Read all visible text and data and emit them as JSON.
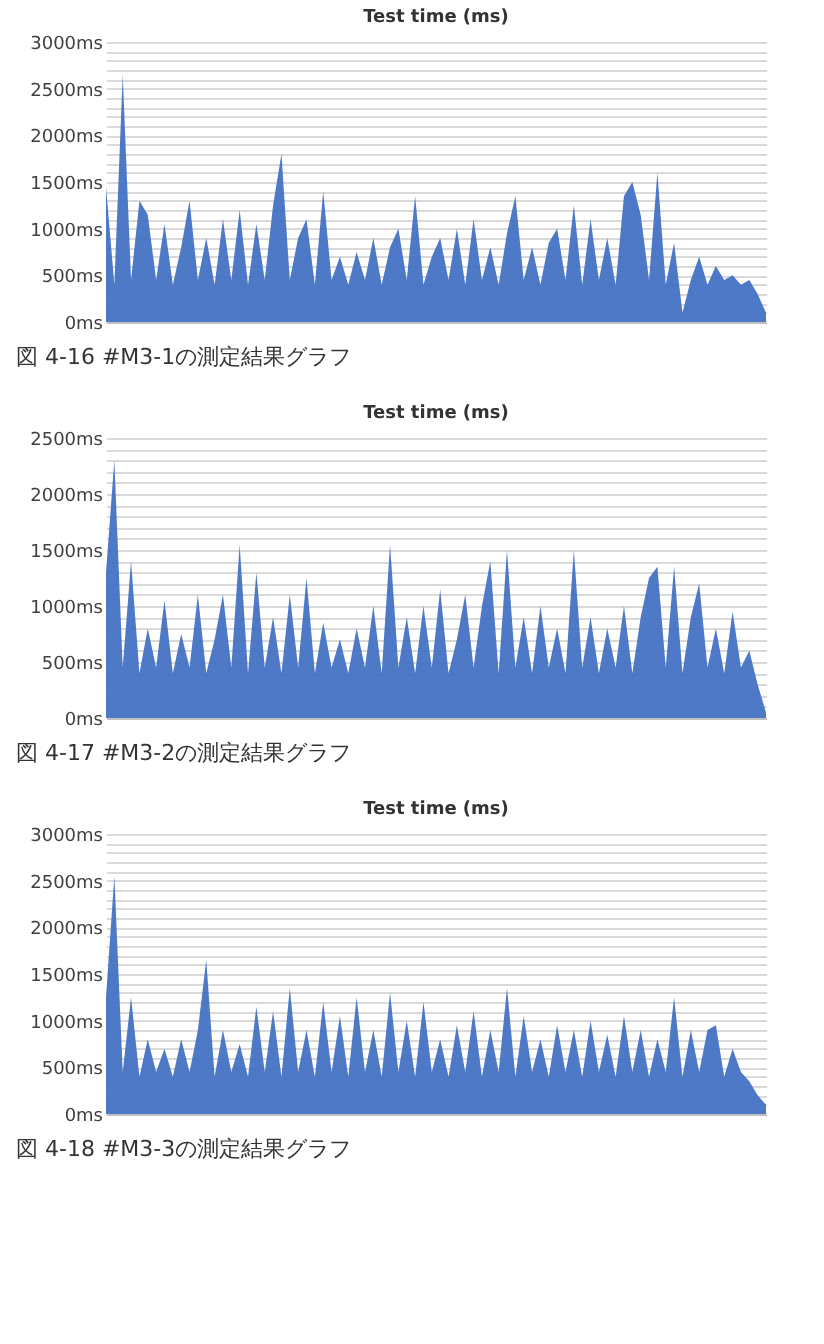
{
  "chart_data": [
    {
      "type": "area",
      "title": "Test time (ms)",
      "annotations": [
        "図 4-16 #M3-1の測定結果グラフ"
      ],
      "color": "#4472c4",
      "grid": "y",
      "tick_labels": "y",
      "categories": [
        null,
        null,
        null,
        null,
        null,
        null,
        null,
        null,
        null,
        null,
        null,
        null,
        null,
        null,
        null,
        null,
        null,
        null,
        null,
        null,
        null,
        null,
        null,
        null,
        null,
        null,
        null,
        null,
        null,
        null,
        null,
        null,
        null,
        null,
        null,
        null,
        null,
        null,
        null,
        null,
        null,
        null,
        null,
        null,
        null,
        null,
        null,
        null,
        null,
        null,
        null,
        null,
        null,
        null,
        null,
        null,
        null,
        null,
        null,
        null,
        null,
        null,
        null,
        null,
        null,
        null,
        null,
        null,
        null,
        null,
        null,
        null,
        null,
        null,
        null,
        null,
        null,
        null,
        null,
        null
      ],
      "values": [
        1450,
        400,
        2650,
        450,
        1300,
        1150,
        450,
        1050,
        400,
        800,
        1300,
        450,
        900,
        400,
        1100,
        450,
        1200,
        400,
        1050,
        450,
        1250,
        1800,
        450,
        900,
        1100,
        400,
        1400,
        450,
        700,
        400,
        750,
        450,
        900,
        400,
        800,
        1000,
        450,
        1350,
        400,
        700,
        900,
        450,
        1000,
        400,
        1100,
        450,
        800,
        400,
        950,
        1350,
        450,
        800,
        400,
        850,
        1000,
        450,
        1250,
        400,
        1100,
        450,
        900,
        400,
        1350,
        1500,
        1150,
        450,
        1600,
        400,
        850,
        100,
        450,
        700,
        400,
        600,
        450,
        500,
        400,
        450,
        300,
        100
      ],
      "ylim": [
        0,
        3000
      ],
      "yticks": [
        {
          "value": 0,
          "label": "0ms"
        },
        {
          "value": 100,
          "label": null
        },
        {
          "value": 200,
          "label": null
        },
        {
          "value": 300,
          "label": null
        },
        {
          "value": 400,
          "label": null
        },
        {
          "value": 500,
          "label": "500ms"
        },
        {
          "value": 600,
          "label": null
        },
        {
          "value": 700,
          "label": null
        },
        {
          "value": 800,
          "label": null
        },
        {
          "value": 900,
          "label": null
        },
        {
          "value": 1000,
          "label": "1000ms"
        },
        {
          "value": 1100,
          "label": null
        },
        {
          "value": 1200,
          "label": null
        },
        {
          "value": 1300,
          "label": null
        },
        {
          "value": 1400,
          "label": null
        },
        {
          "value": 1500,
          "label": "1500ms"
        },
        {
          "value": 1600,
          "label": null
        },
        {
          "value": 1700,
          "label": null
        },
        {
          "value": 1800,
          "label": null
        },
        {
          "value": 1900,
          "label": null
        },
        {
          "value": 2000,
          "label": "2000ms"
        },
        {
          "value": 2100,
          "label": null
        },
        {
          "value": 2200,
          "label": null
        },
        {
          "value": 2300,
          "label": null
        },
        {
          "value": 2400,
          "label": null
        },
        {
          "value": 2500,
          "label": "2500ms"
        },
        {
          "value": 2600,
          "label": null
        },
        {
          "value": 2700,
          "label": null
        },
        {
          "value": 2800,
          "label": null
        },
        {
          "value": 2900,
          "label": null
        },
        {
          "value": 3000,
          "label": "3000ms"
        }
      ]
    },
    {
      "type": "area",
      "title": "Test time (ms)",
      "annotations": [
        "図 4-17 #M3-2の測定結果グラフ"
      ],
      "color": "#4472c4",
      "grid": "y",
      "tick_labels": "y",
      "categories": [
        null,
        null,
        null,
        null,
        null,
        null,
        null,
        null,
        null,
        null,
        null,
        null,
        null,
        null,
        null,
        null,
        null,
        null,
        null,
        null,
        null,
        null,
        null,
        null,
        null,
        null,
        null,
        null,
        null,
        null,
        null,
        null,
        null,
        null,
        null,
        null,
        null,
        null,
        null,
        null,
        null,
        null,
        null,
        null,
        null,
        null,
        null,
        null,
        null,
        null,
        null,
        null,
        null,
        null,
        null,
        null,
        null,
        null,
        null,
        null,
        null,
        null,
        null,
        null,
        null,
        null,
        null,
        null,
        null,
        null,
        null,
        null,
        null,
        null,
        null,
        null,
        null,
        null,
        null,
        null
      ],
      "values": [
        1300,
        2300,
        450,
        1400,
        400,
        800,
        450,
        1050,
        400,
        750,
        450,
        1100,
        400,
        700,
        1100,
        450,
        1550,
        400,
        1300,
        450,
        900,
        400,
        1100,
        450,
        1250,
        400,
        850,
        450,
        700,
        400,
        800,
        450,
        1000,
        400,
        1550,
        450,
        900,
        400,
        1000,
        450,
        1150,
        400,
        700,
        1100,
        450,
        1000,
        1400,
        400,
        1500,
        450,
        900,
        400,
        1000,
        450,
        800,
        400,
        1500,
        450,
        900,
        400,
        800,
        450,
        1000,
        400,
        900,
        1250,
        1350,
        450,
        1350,
        400,
        900,
        1200,
        450,
        800,
        400,
        950,
        450,
        600,
        300,
        50
      ],
      "ylim": [
        0,
        2500
      ],
      "yticks": [
        {
          "value": 0,
          "label": "0ms"
        },
        {
          "value": 100,
          "label": null
        },
        {
          "value": 200,
          "label": null
        },
        {
          "value": 300,
          "label": null
        },
        {
          "value": 400,
          "label": null
        },
        {
          "value": 500,
          "label": "500ms"
        },
        {
          "value": 600,
          "label": null
        },
        {
          "value": 700,
          "label": null
        },
        {
          "value": 800,
          "label": null
        },
        {
          "value": 900,
          "label": null
        },
        {
          "value": 1000,
          "label": "1000ms"
        },
        {
          "value": 1100,
          "label": null
        },
        {
          "value": 1200,
          "label": null
        },
        {
          "value": 1300,
          "label": null
        },
        {
          "value": 1400,
          "label": null
        },
        {
          "value": 1500,
          "label": "1500ms"
        },
        {
          "value": 1600,
          "label": null
        },
        {
          "value": 1700,
          "label": null
        },
        {
          "value": 1800,
          "label": null
        },
        {
          "value": 1900,
          "label": null
        },
        {
          "value": 2000,
          "label": "2000ms"
        },
        {
          "value": 2100,
          "label": null
        },
        {
          "value": 2200,
          "label": null
        },
        {
          "value": 2300,
          "label": null
        },
        {
          "value": 2400,
          "label": null
        },
        {
          "value": 2500,
          "label": "2500ms"
        }
      ]
    },
    {
      "type": "area",
      "title": "Test time (ms)",
      "annotations": [
        "図 4-18 #M3-3の測定結果グラフ"
      ],
      "color": "#4472c4",
      "grid": "y",
      "tick_labels": "y",
      "categories": [
        null,
        null,
        null,
        null,
        null,
        null,
        null,
        null,
        null,
        null,
        null,
        null,
        null,
        null,
        null,
        null,
        null,
        null,
        null,
        null,
        null,
        null,
        null,
        null,
        null,
        null,
        null,
        null,
        null,
        null,
        null,
        null,
        null,
        null,
        null,
        null,
        null,
        null,
        null,
        null,
        null,
        null,
        null,
        null,
        null,
        null,
        null,
        null,
        null,
        null,
        null,
        null,
        null,
        null,
        null,
        null,
        null,
        null,
        null,
        null,
        null,
        null,
        null,
        null,
        null,
        null,
        null,
        null,
        null,
        null,
        null,
        null,
        null,
        null,
        null,
        null,
        null,
        null,
        null,
        null
      ],
      "values": [
        1250,
        2550,
        450,
        1250,
        400,
        800,
        450,
        700,
        400,
        800,
        450,
        900,
        1650,
        400,
        900,
        450,
        750,
        400,
        1150,
        450,
        1100,
        400,
        1350,
        450,
        900,
        400,
        1200,
        450,
        1050,
        400,
        1250,
        450,
        900,
        400,
        1300,
        450,
        1000,
        400,
        1200,
        450,
        800,
        400,
        950,
        450,
        1100,
        400,
        900,
        450,
        1350,
        400,
        1050,
        450,
        800,
        400,
        950,
        450,
        900,
        400,
        1000,
        450,
        850,
        400,
        1050,
        450,
        900,
        400,
        800,
        450,
        1250,
        400,
        900,
        450,
        900,
        950,
        400,
        700,
        450,
        350,
        200,
        100
      ],
      "ylim": [
        0,
        3000
      ],
      "yticks": [
        {
          "value": 0,
          "label": "0ms"
        },
        {
          "value": 100,
          "label": null
        },
        {
          "value": 200,
          "label": null
        },
        {
          "value": 300,
          "label": null
        },
        {
          "value": 400,
          "label": null
        },
        {
          "value": 500,
          "label": "500ms"
        },
        {
          "value": 600,
          "label": null
        },
        {
          "value": 700,
          "label": null
        },
        {
          "value": 800,
          "label": null
        },
        {
          "value": 900,
          "label": null
        },
        {
          "value": 1000,
          "label": "1000ms"
        },
        {
          "value": 1100,
          "label": null
        },
        {
          "value": 1200,
          "label": null
        },
        {
          "value": 1300,
          "label": null
        },
        {
          "value": 1400,
          "label": null
        },
        {
          "value": 1500,
          "label": "1500ms"
        },
        {
          "value": 1600,
          "label": null
        },
        {
          "value": 1700,
          "label": null
        },
        {
          "value": 1800,
          "label": null
        },
        {
          "value": 1900,
          "label": null
        },
        {
          "value": 2000,
          "label": "2000ms"
        },
        {
          "value": 2100,
          "label": null
        },
        {
          "value": 2200,
          "label": null
        },
        {
          "value": 2300,
          "label": null
        },
        {
          "value": 2400,
          "label": null
        },
        {
          "value": 2500,
          "label": "2500ms"
        },
        {
          "value": 2600,
          "label": null
        },
        {
          "value": 2700,
          "label": null
        },
        {
          "value": 2800,
          "label": null
        },
        {
          "value": 2900,
          "label": null
        },
        {
          "value": 3000,
          "label": "3000ms"
        }
      ]
    }
  ]
}
